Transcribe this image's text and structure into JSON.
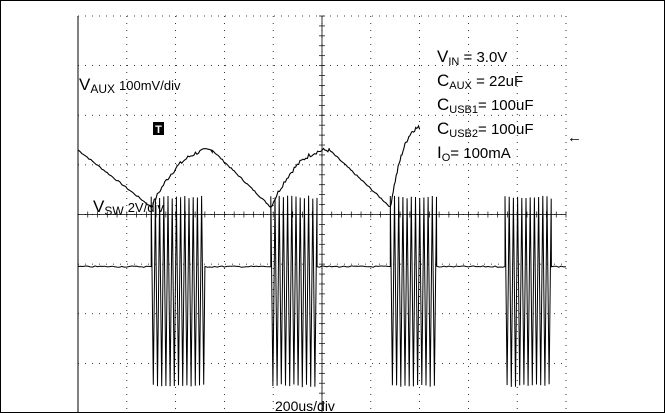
{
  "chart_data": {
    "type": "line",
    "title": "",
    "timebase": "200us/div",
    "grid": true,
    "series": [
      {
        "name": "VAUX",
        "label_main": "V",
        "label_sub": "AUX",
        "scale": "100mV/div",
        "shape": "sawtooth",
        "valleys_ms": [
          0.3,
          0.79,
          1.28
        ],
        "peaks_ms": [
          0.0,
          0.55,
          1.03
        ],
        "peak_div": 5.3,
        "valley_div": 4.15,
        "final_div": 5.75
      },
      {
        "name": "VSW",
        "label_main": "V",
        "label_sub": "SW",
        "scale": "2V/div",
        "shape": "switching bursts",
        "burst_windows_ms": [
          [
            0.3,
            0.52
          ],
          [
            0.79,
            0.98
          ],
          [
            1.28,
            1.47
          ],
          [
            1.75,
            1.94
          ]
        ],
        "idle_div": 2.95,
        "high_div": 4.35,
        "low_div": 0.55
      }
    ],
    "annotations": [
      {
        "main": "V",
        "sub": "IN",
        "text": " = 3.0V"
      },
      {
        "main": "C",
        "sub": "AUX",
        "text": " = 22uF"
      },
      {
        "main": "C",
        "sub": "USB1",
        "text": "= 100uF"
      },
      {
        "main": "C",
        "sub": "USB2",
        "text": "= 100uF"
      },
      {
        "main": "I",
        "sub": "O",
        "text": "= 100mA"
      }
    ],
    "trigger_marker": "T",
    "trigger_level_marker": "←"
  }
}
